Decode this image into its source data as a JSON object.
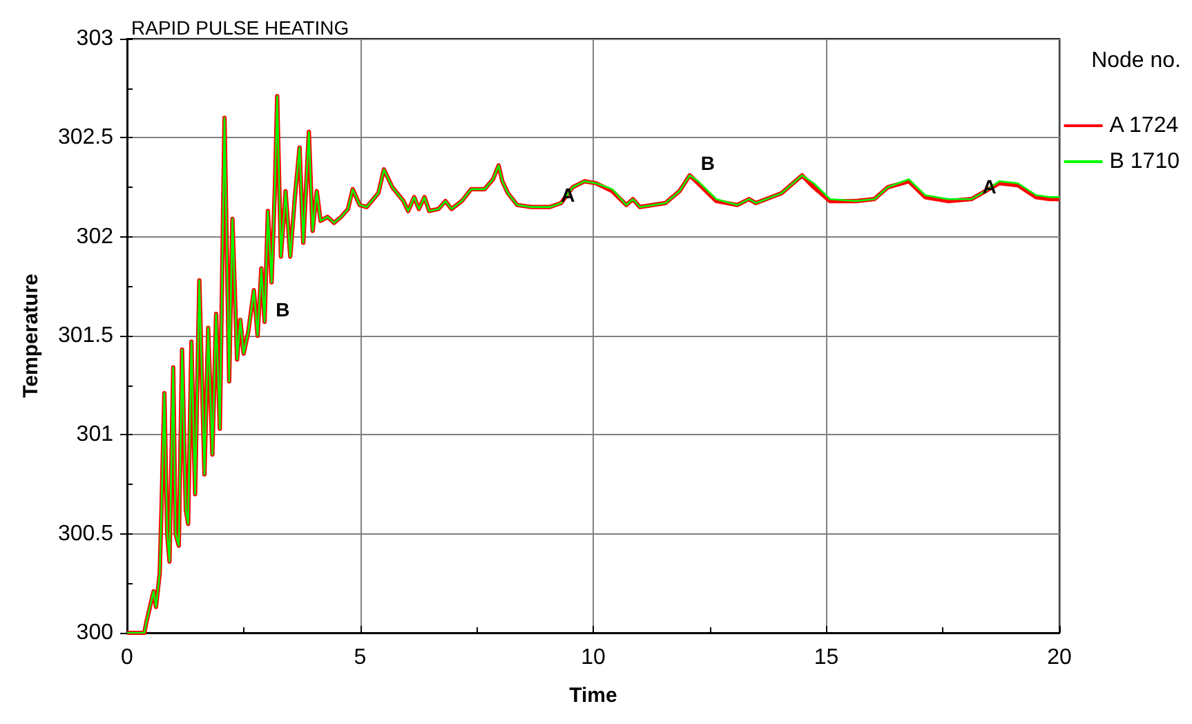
{
  "chart_data": {
    "type": "line",
    "title": "RAPID PULSE HEATING",
    "xlabel": "Time",
    "ylabel": "Temperature",
    "legend_title": "Node no.",
    "x": [
      0,
      0.37,
      0.42,
      0.57,
      0.62,
      0.7,
      0.74,
      0.8,
      0.86,
      0.91,
      0.99,
      1.04,
      1.11,
      1.18,
      1.26,
      1.31,
      1.38,
      1.46,
      1.55,
      1.66,
      1.74,
      1.83,
      1.91,
      1.99,
      2.09,
      2.19,
      2.26,
      2.36,
      2.43,
      2.5,
      2.6,
      2.72,
      2.8,
      2.88,
      2.95,
      3.02,
      3.1,
      3.17,
      3.22,
      3.3,
      3.4,
      3.5,
      3.6,
      3.7,
      3.78,
      3.9,
      3.98,
      4.07,
      4.15,
      4.3,
      4.44,
      4.59,
      4.74,
      4.84,
      4.99,
      5.14,
      5.39,
      5.51,
      5.69,
      5.93,
      6.03,
      6.16,
      6.26,
      6.38,
      6.48,
      6.68,
      6.83,
      6.96,
      7.18,
      7.38,
      7.67,
      7.85,
      7.97,
      8.05,
      8.17,
      8.37,
      8.67,
      9.07,
      9.31,
      9.56,
      9.81,
      10.06,
      10.41,
      10.71,
      10.85,
      11,
      11.55,
      11.85,
      12.07,
      12.25,
      12.64,
      13.09,
      13.34,
      13.49,
      14.04,
      14.48,
      14.73,
      15.08,
      15.63,
      16.03,
      16.32,
      16.77,
      17.12,
      17.61,
      18.11,
      18.41,
      18.71,
      19.11,
      19.5,
      19.8,
      20
    ],
    "series": [
      {
        "name": "A 1724",
        "color": "#ff0000",
        "values": [
          300,
          300,
          300.06,
          300.21,
          300.13,
          300.3,
          300.64,
          301.21,
          300.5,
          300.36,
          301.34,
          300.5,
          300.44,
          301.43,
          300.62,
          300.55,
          301.47,
          300.7,
          301.78,
          300.8,
          301.54,
          300.9,
          301.61,
          301.03,
          302.6,
          301.27,
          302.09,
          301.38,
          301.58,
          301.41,
          301.52,
          301.73,
          301.5,
          301.84,
          301.57,
          302.13,
          301.77,
          302.24,
          302.71,
          301.9,
          302.23,
          301.9,
          302.2,
          302.45,
          301.97,
          302.53,
          302.03,
          302.23,
          302.08,
          302.1,
          302.07,
          302.1,
          302.14,
          302.24,
          302.16,
          302.15,
          302.22,
          302.34,
          302.25,
          302.18,
          302.13,
          302.2,
          302.14,
          302.2,
          302.13,
          302.14,
          302.18,
          302.14,
          302.18,
          302.24,
          302.24,
          302.29,
          302.36,
          302.28,
          302.22,
          302.16,
          302.15,
          302.15,
          302.17,
          302.25,
          302.28,
          302.27,
          302.23,
          302.16,
          302.19,
          302.15,
          302.17,
          302.23,
          302.31,
          302.27,
          302.18,
          302.16,
          302.19,
          302.17,
          302.22,
          302.31,
          302.25,
          302.18,
          302.18,
          302.19,
          302.25,
          302.28,
          302.2,
          302.18,
          302.19,
          302.23,
          302.27,
          302.26,
          302.2,
          302.19,
          302.19
        ]
      },
      {
        "name": "B 1710",
        "color": "#00ff00",
        "values": [
          300,
          300,
          300.06,
          300.21,
          300.13,
          300.3,
          300.64,
          301.21,
          300.5,
          300.36,
          301.34,
          300.5,
          300.44,
          301.43,
          300.62,
          300.55,
          301.47,
          300.7,
          301.78,
          300.8,
          301.54,
          300.9,
          301.61,
          301.03,
          302.6,
          301.27,
          302.09,
          301.38,
          301.58,
          301.41,
          301.52,
          301.73,
          301.5,
          301.84,
          301.57,
          302.13,
          301.77,
          302.24,
          302.71,
          301.9,
          302.23,
          301.9,
          302.2,
          302.45,
          301.97,
          302.53,
          302.03,
          302.23,
          302.08,
          302.1,
          302.07,
          302.1,
          302.14,
          302.24,
          302.16,
          302.15,
          302.22,
          302.34,
          302.25,
          302.18,
          302.13,
          302.2,
          302.14,
          302.2,
          302.13,
          302.14,
          302.18,
          302.14,
          302.18,
          302.24,
          302.24,
          302.29,
          302.36,
          302.28,
          302.22,
          302.16,
          302.15,
          302.15,
          302.17,
          302.25,
          302.28,
          302.27,
          302.24,
          302.16,
          302.19,
          302.15,
          302.17,
          302.23,
          302.31,
          302.28,
          302.19,
          302.16,
          302.19,
          302.17,
          302.22,
          302.31,
          302.27,
          302.19,
          302.18,
          302.19,
          302.25,
          302.29,
          302.21,
          302.19,
          302.19,
          302.23,
          302.28,
          302.27,
          302.21,
          302.2,
          302.2
        ]
      }
    ],
    "annotations": [
      {
        "text": "B",
        "x": 2.95,
        "y": 301.57
      },
      {
        "text": "A",
        "x": 9.07,
        "y": 302.15
      },
      {
        "text": "B",
        "x": 12.07,
        "y": 302.31
      },
      {
        "text": "A",
        "x": 18.11,
        "y": 302.19
      }
    ],
    "xlim": [
      0,
      20
    ],
    "xticks": [
      0,
      {
        "value": 2.5,
        "label": null
      },
      5,
      {
        "value": 7.5,
        "label": null
      },
      10,
      {
        "value": 12.5,
        "label": null
      },
      15,
      {
        "value": 17.5,
        "label": null
      },
      20
    ],
    "ylim": [
      300,
      303
    ],
    "yticks": [
      300,
      {
        "value": 300.25,
        "label": null
      },
      300.5,
      {
        "value": 300.75,
        "label": null
      },
      301,
      {
        "value": 301.25,
        "label": null
      },
      301.5,
      {
        "value": 301.75,
        "label": null
      },
      302,
      {
        "value": 302.25,
        "label": null
      },
      302.5,
      {
        "value": 302.75,
        "label": null
      },
      303
    ],
    "grid": true,
    "legend": "right",
    "marker": "none",
    "line_style": "solid"
  }
}
